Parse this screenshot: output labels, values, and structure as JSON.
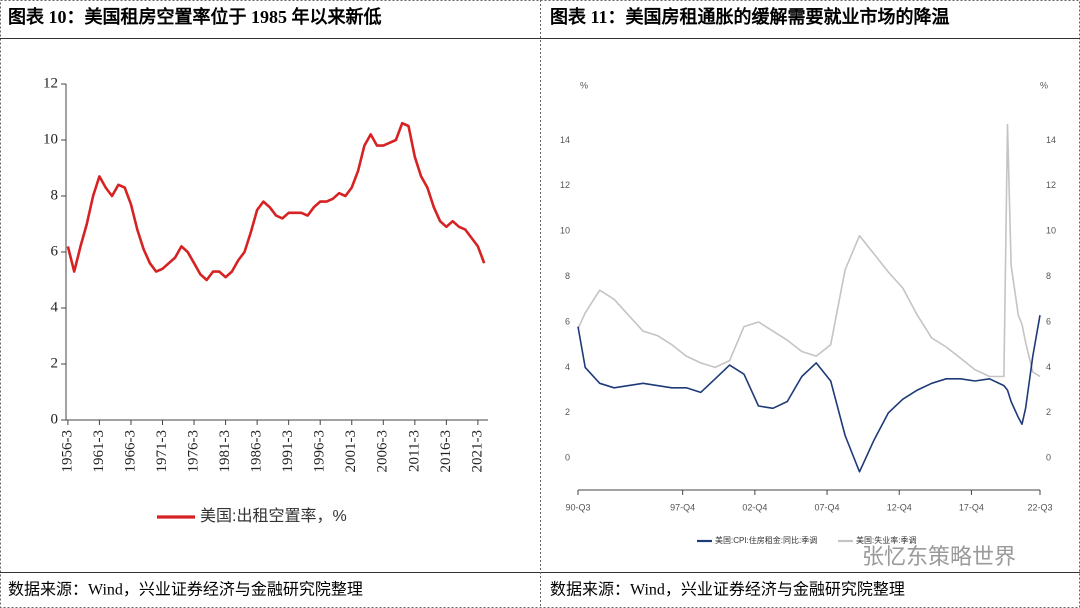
{
  "chart_data": [
    {
      "type": "line",
      "title": "图表 10：美国租房空置率位于 1985 年以来新低",
      "source": "数据来源：Wind，兴业证券经济与金融研究院整理",
      "x": [
        1956,
        1957,
        1958,
        1959,
        1960,
        1961,
        1962,
        1963,
        1964,
        1965,
        1966,
        1967,
        1968,
        1969,
        1970,
        1971,
        1972,
        1973,
        1974,
        1975,
        1976,
        1977,
        1978,
        1979,
        1980,
        1981,
        1982,
        1983,
        1984,
        1985,
        1986,
        1987,
        1988,
        1989,
        1990,
        1991,
        1992,
        1993,
        1994,
        1995,
        1996,
        1997,
        1998,
        1999,
        2000,
        2001,
        2002,
        2003,
        2004,
        2005,
        2006,
        2007,
        2008,
        2009,
        2010,
        2011,
        2012,
        2013,
        2014,
        2015,
        2016,
        2017,
        2018,
        2019,
        2020,
        2021,
        2022
      ],
      "series": [
        {
          "name": "美国:出租空置率，%",
          "color": "#d62222",
          "values": [
            6.2,
            5.3,
            6.2,
            7.0,
            8.0,
            8.7,
            8.3,
            8.0,
            8.4,
            8.3,
            7.7,
            6.8,
            6.1,
            5.6,
            5.3,
            5.4,
            5.6,
            5.8,
            6.2,
            6.0,
            5.6,
            5.2,
            5.0,
            5.3,
            5.3,
            5.1,
            5.3,
            5.7,
            6.0,
            6.7,
            7.5,
            7.8,
            7.6,
            7.3,
            7.2,
            7.4,
            7.4,
            7.4,
            7.3,
            7.6,
            7.8,
            7.8,
            7.9,
            8.1,
            8.0,
            8.3,
            8.9,
            9.8,
            10.2,
            9.8,
            9.8,
            9.9,
            10.0,
            10.6,
            10.5,
            9.4,
            8.7,
            8.3,
            7.6,
            7.1,
            6.9,
            7.1,
            6.9,
            6.8,
            6.5,
            6.2,
            5.6
          ]
        }
      ],
      "xlim": [
        1955.7,
        2022.6
      ],
      "xticks": [
        {
          "value": 1956,
          "label": "1956-3"
        },
        {
          "value": 1961,
          "label": "1961-3"
        },
        {
          "value": 1966,
          "label": "1966-3"
        },
        {
          "value": 1971,
          "label": "1971-3"
        },
        {
          "value": 1976,
          "label": "1976-3"
        },
        {
          "value": 1981,
          "label": "1981-3"
        },
        {
          "value": 1986,
          "label": "1986-3"
        },
        {
          "value": 1991,
          "label": "1991-3"
        },
        {
          "value": 1996,
          "label": "1996-3"
        },
        {
          "value": 2001,
          "label": "2001-3"
        },
        {
          "value": 2006,
          "label": "2006-3"
        },
        {
          "value": 2011,
          "label": "2011-3"
        },
        {
          "value": 2016,
          "label": "2016-3"
        },
        {
          "value": 2021,
          "label": "2021-3"
        }
      ],
      "ylim": [
        0,
        12
      ],
      "yticks": [
        0,
        2,
        4,
        6,
        8,
        10,
        12
      ],
      "grid": false
    },
    {
      "type": "line",
      "title": "图表 11：美国房租通胀的缓解需要就业市场的降温",
      "source": "数据来源：Wind，兴业证券经济与金融研究院整理",
      "y_label": "%",
      "y2_label": "%",
      "x": [
        1990.5,
        1991,
        1992,
        1993,
        1994,
        1995,
        1996,
        1997,
        1998,
        1999,
        2000,
        2001,
        2002,
        2003,
        2004,
        2005,
        2006,
        2007,
        2008,
        2009,
        2010,
        2011,
        2012,
        2013,
        2014,
        2015,
        2016,
        2017,
        2018,
        2019,
        2020,
        2020.25,
        2020.5,
        2021,
        2021.25,
        2021.5,
        2022,
        2022.5
      ],
      "series": [
        {
          "name": "美国:CPI:住房租金:同比:季调",
          "color": "#1f3a78",
          "values": [
            5.8,
            4.0,
            3.3,
            3.1,
            3.2,
            3.3,
            3.2,
            3.1,
            3.1,
            2.9,
            3.5,
            4.1,
            3.7,
            2.3,
            2.2,
            2.5,
            3.6,
            4.2,
            3.4,
            1.0,
            -0.6,
            0.8,
            2.0,
            2.6,
            3.0,
            3.3,
            3.5,
            3.5,
            3.4,
            3.5,
            3.2,
            3.0,
            2.5,
            1.8,
            1.5,
            2.2,
            4.5,
            6.3
          ]
        },
        {
          "name": "美国:失业率:季调",
          "color": "#c4c4c4",
          "axis": "y2",
          "values": [
            5.7,
            6.4,
            7.4,
            7.0,
            6.3,
            5.6,
            5.4,
            5.0,
            4.5,
            4.2,
            4.0,
            4.3,
            5.8,
            6.0,
            5.6,
            5.2,
            4.7,
            4.5,
            5.0,
            8.3,
            9.8,
            9.0,
            8.2,
            7.5,
            6.3,
            5.3,
            4.9,
            4.4,
            3.9,
            3.6,
            3.6,
            14.7,
            8.5,
            6.3,
            5.9,
            5.1,
            3.8,
            3.6
          ]
        }
      ],
      "xlim": [
        1990.5,
        2022.5
      ],
      "xticks": [
        {
          "value": 1990.5,
          "label": "90-Q3"
        },
        {
          "value": 1997.75,
          "label": "97-Q4"
        },
        {
          "value": 2002.75,
          "label": "02-Q4"
        },
        {
          "value": 2007.75,
          "label": "07-Q4"
        },
        {
          "value": 2012.75,
          "label": "12-Q4"
        },
        {
          "value": 2017.75,
          "label": "17-Q4"
        },
        {
          "value": 2022.5,
          "label": "22-Q3"
        }
      ],
      "ylim": [
        -1.4,
        16
      ],
      "yticks": [
        0,
        2,
        4,
        6,
        8,
        10,
        12,
        14
      ],
      "y2lim": [
        -1.4,
        16
      ],
      "y2ticks": [
        0,
        2,
        4,
        6,
        8,
        10,
        12,
        14
      ],
      "grid": false
    }
  ],
  "watermark": "张忆东策略世界"
}
